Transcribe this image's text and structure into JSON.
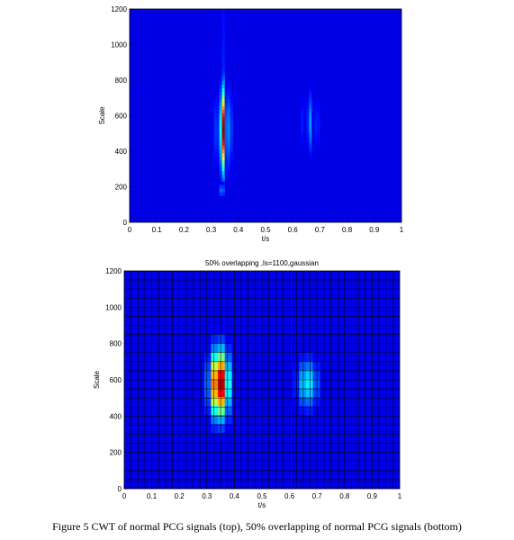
{
  "caption": "Figure 5 CWT of normal PCG signals (top), 50% overlapping of normal PCG signals (bottom)",
  "colors": {
    "low": "#0a1f8c",
    "mid": "#00c8ff",
    "high": "#b30000",
    "grid": "#000000"
  },
  "chart_data": [
    {
      "type": "heatmap",
      "title": "",
      "xlabel": "t/s",
      "ylabel": "Scale",
      "xlim": [
        0,
        1
      ],
      "ylim": [
        0,
        1200
      ],
      "xticks": [
        "0",
        "0.1",
        "0.2",
        "0.3",
        "0.4",
        "0.5",
        "0.6",
        "0.7",
        "0.8",
        "0.9",
        "1"
      ],
      "yticks": [
        "0",
        "200",
        "400",
        "600",
        "800",
        "1000",
        "1200"
      ],
      "grid": false,
      "hotspots": [
        {
          "t": 0.345,
          "scale": 520,
          "peak": 1.0,
          "t_spread": 0.014,
          "scale_spread": 150,
          "t_extent": [
            0.3,
            0.39
          ],
          "scale_extent": [
            150,
            1200
          ]
        },
        {
          "t": 0.665,
          "scale": 560,
          "peak": 0.22,
          "t_spread": 0.02,
          "scale_spread": 110,
          "t_extent": [
            0.62,
            0.72
          ],
          "scale_extent": [
            300,
            900
          ]
        },
        {
          "t": 0.34,
          "scale": 180,
          "peak": 0.22,
          "t_spread": 0.01,
          "scale_spread": 25,
          "t_extent": [
            0.32,
            0.36
          ],
          "scale_extent": [
            140,
            230
          ]
        }
      ]
    },
    {
      "type": "heatmap",
      "title": "50% overlapping ,ls=1100,gaussian",
      "xlabel": "t/s",
      "ylabel": "Scale",
      "xlim": [
        0,
        1
      ],
      "ylim": [
        0,
        1200
      ],
      "xticks": [
        "0",
        "0.1",
        "0.2",
        "0.3",
        "0.4",
        "0.5",
        "0.6",
        "0.7",
        "0.8",
        "0.9",
        "1"
      ],
      "yticks": [
        "0",
        "200",
        "400",
        "600",
        "800",
        "1000",
        "1200"
      ],
      "grid": true,
      "hotspots": [
        {
          "t": 0.345,
          "scale": 580,
          "peak": 1.0,
          "t_spread": 0.022,
          "scale_spread": 120,
          "t_extent": [
            0.29,
            0.41
          ],
          "scale_extent": [
            300,
            900
          ]
        },
        {
          "t": 0.665,
          "scale": 580,
          "peak": 0.32,
          "t_spread": 0.025,
          "scale_spread": 90,
          "t_extent": [
            0.61,
            0.72
          ],
          "scale_extent": [
            300,
            800
          ]
        }
      ]
    }
  ]
}
